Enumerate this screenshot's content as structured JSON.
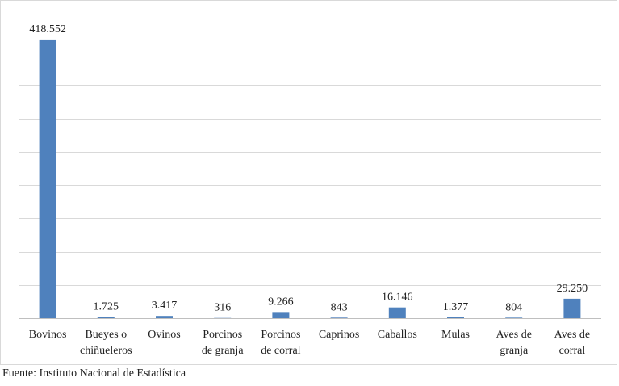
{
  "chart_data": {
    "type": "bar",
    "title": "",
    "xlabel": "",
    "ylabel": "",
    "categories": [
      [
        "Bovinos"
      ],
      [
        "Bueyes o",
        "chiñueleros"
      ],
      [
        "Ovinos"
      ],
      [
        "Porcinos",
        "de granja"
      ],
      [
        "Porcinos",
        "de  corral"
      ],
      [
        "Caprinos"
      ],
      [
        "Caballos"
      ],
      [
        "Mulas"
      ],
      [
        "Aves de",
        "granja"
      ],
      [
        "Aves de",
        "corral"
      ]
    ],
    "values": [
      418552,
      1725,
      3417,
      316,
      9266,
      843,
      16146,
      1377,
      804,
      29250
    ],
    "value_labels": [
      "418.552",
      "1.725",
      "3.417",
      "316",
      "9.266",
      "843",
      "16.146",
      "1.377",
      "804",
      "29.250"
    ],
    "ylim": [
      0,
      450000
    ],
    "grid": true,
    "bar_color": "#4f81bd"
  },
  "source_text": "Fuente: Instituto Nacional de Estadística"
}
